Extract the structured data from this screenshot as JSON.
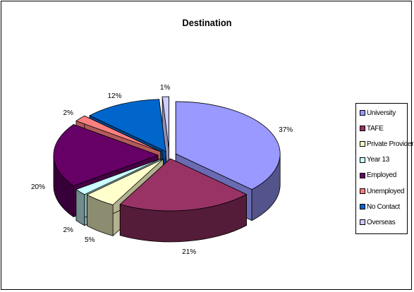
{
  "chart_data": {
    "type": "pie",
    "style": "3d-exploded",
    "title": "Destination",
    "categories": [
      "University",
      "TAFE",
      "Private Provider",
      "Year 13",
      "Employed",
      "Unemployed",
      "No Contact",
      "Overseas"
    ],
    "values": [
      37,
      21,
      5,
      2,
      20,
      2,
      12,
      1
    ],
    "data_labels": [
      "37%",
      "21%",
      "5%",
      "2%",
      "20%",
      "2%",
      "12%",
      "1%"
    ],
    "colors": [
      "#9999ff",
      "#993366",
      "#ffffcc",
      "#ccffff",
      "#660066",
      "#ff8080",
      "#0066cc",
      "#ccccff"
    ],
    "legend_position": "right"
  }
}
